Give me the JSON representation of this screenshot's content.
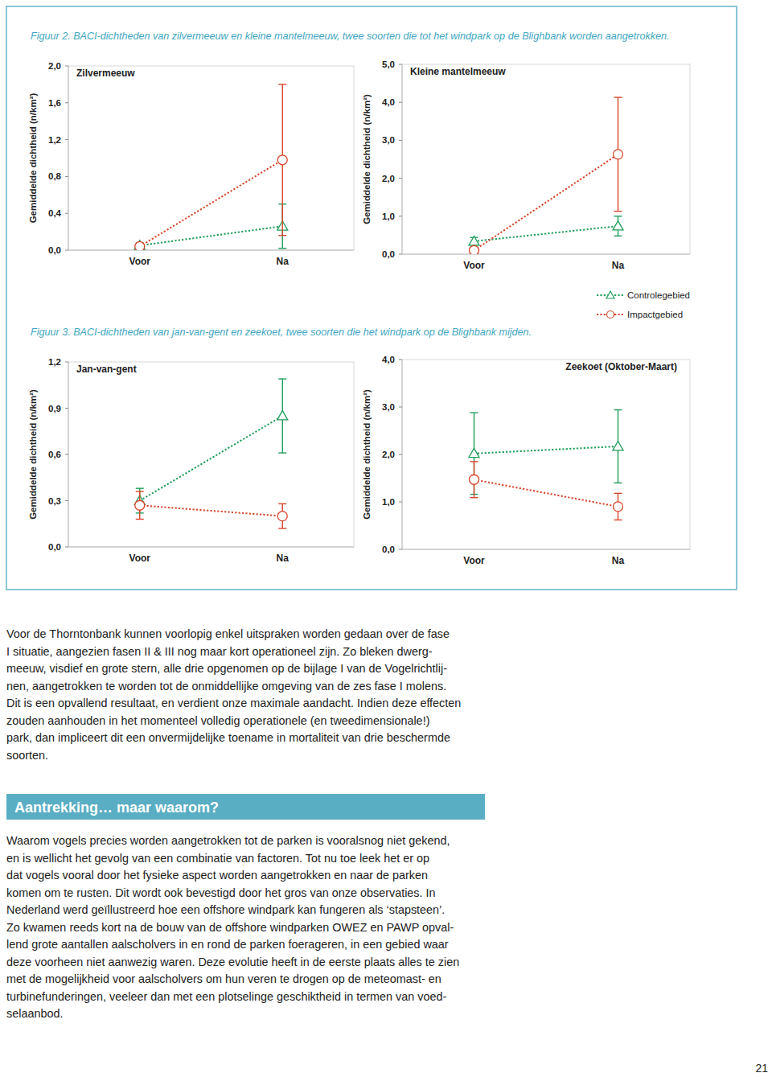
{
  "figures": [
    {
      "caption": "Figuur 2. BACI-dichtheden van zilvermeeuw en kleine mantelmeeuw, twee soorten die tot het windpark op de Blighbank worden aangetrokken."
    },
    {
      "caption": "Figuur 3. BACI-dichtheden van jan-van-gent en zeekoet, twee soorten die het windpark op de Blighbank mijden."
    }
  ],
  "chart_data": [
    {
      "type": "line",
      "title": "Zilvermeeuw",
      "y_label": "Gemiddelde dichtheid (n/km²)",
      "categories": [
        "Voor",
        "Na"
      ],
      "ylim": [
        0,
        2
      ],
      "yticks": [
        {
          "value": 0,
          "label": "0,0"
        },
        {
          "value": 0.4,
          "label": "0,4"
        },
        {
          "value": 0.8,
          "label": "0,8"
        },
        {
          "value": 1.2,
          "label": "1,2"
        },
        {
          "value": 1.6,
          "label": "1,6"
        },
        {
          "value": 2,
          "label": "2,0"
        }
      ],
      "grid": false,
      "series": [
        {
          "name": "Controlegebied",
          "color": "#1f9e5a",
          "marker": "triangle",
          "line_style": "dotted",
          "values": [
            0.05,
            0.26
          ],
          "errors": [
            0.03,
            0.24
          ]
        },
        {
          "name": "Impactgebied",
          "color": "#d9452b",
          "marker": "circle",
          "line_style": "dotted",
          "values": [
            0.04,
            0.98
          ],
          "errors": [
            0.01,
            0.82
          ]
        }
      ]
    },
    {
      "type": "line",
      "title": "Kleine mantelmeeuw",
      "y_label": "Gemiddelde dichtheid (n/km²)",
      "categories": [
        "Voor",
        "Na"
      ],
      "ylim": [
        0,
        5
      ],
      "yticks": [
        {
          "value": 0,
          "label": "0,0"
        },
        {
          "value": 1,
          "label": "1,0"
        },
        {
          "value": 2,
          "label": "2,0"
        },
        {
          "value": 3,
          "label": "3,0"
        },
        {
          "value": 4,
          "label": "4,0"
        },
        {
          "value": 5,
          "label": "5,0"
        }
      ],
      "grid": false,
      "series": [
        {
          "name": "Controlegebied",
          "color": "#1f9e5a",
          "marker": "triangle",
          "line_style": "dotted",
          "values": [
            0.34,
            0.74
          ],
          "errors": [
            0.1,
            0.26
          ]
        },
        {
          "name": "Impactgebied",
          "color": "#d9452b",
          "marker": "circle",
          "line_style": "dotted",
          "values": [
            0.1,
            2.63
          ],
          "errors": [
            0.03,
            1.5
          ]
        }
      ]
    },
    {
      "type": "line",
      "title": "Jan-van-gent",
      "y_label": "Gemiddelde dichtheid (n/km²)",
      "categories": [
        "Voor",
        "Na"
      ],
      "ylim": [
        0,
        1.2
      ],
      "yticks": [
        {
          "value": 0,
          "label": "0,0"
        },
        {
          "value": 0.3,
          "label": "0,3"
        },
        {
          "value": 0.6,
          "label": "0,6"
        },
        {
          "value": 0.9,
          "label": "0,9"
        },
        {
          "value": 1.2,
          "label": "1,2"
        }
      ],
      "grid": false,
      "series": [
        {
          "name": "Controlegebied",
          "color": "#1f9e5a",
          "marker": "triangle",
          "line_style": "dotted",
          "values": [
            0.3,
            0.85
          ],
          "errors": [
            0.08,
            0.24
          ]
        },
        {
          "name": "Impactgebied",
          "color": "#d9452b",
          "marker": "circle",
          "line_style": "dotted",
          "values": [
            0.27,
            0.2
          ],
          "errors": [
            0.09,
            0.08
          ]
        }
      ]
    },
    {
      "type": "line",
      "title": "Zeekoet (Oktober-Maart)",
      "y_label": "Gemiddelde dichtheid (n/km²)",
      "categories": [
        "Voor",
        "Na"
      ],
      "ylim": [
        0,
        4
      ],
      "yticks": [
        {
          "value": 0,
          "label": "0,0"
        },
        {
          "value": 1,
          "label": "1,0"
        },
        {
          "value": 2,
          "label": "2,0"
        },
        {
          "value": 3,
          "label": "3,0"
        },
        {
          "value": 4,
          "label": "4,0"
        }
      ],
      "grid": false,
      "series": [
        {
          "name": "Controlegebied",
          "color": "#1f9e5a",
          "marker": "triangle",
          "line_style": "dotted",
          "values": [
            2.02,
            2.17
          ],
          "errors": [
            0.86,
            0.77
          ]
        },
        {
          "name": "Impactgebied",
          "color": "#d9452b",
          "marker": "circle",
          "line_style": "dotted",
          "values": [
            1.47,
            0.9
          ],
          "errors": [
            0.38,
            0.28
          ]
        }
      ]
    }
  ],
  "paragraphs": [
    {
      "lines": [
        "Voor de Thorntonbank kunnen voorlopig enkel uitspraken worden gedaan over de fase",
        "I situatie, aangezien fasen II & III nog maar kort operationeel zijn. Zo bleken dwerg-",
        "meeuw, visdief en grote stern, alle drie opgenomen op de bijlage I van de Vogelrichtlij-",
        "nen, aangetrokken te worden tot de onmiddellijke omgeving van de zes fase I molens.",
        "Dit is een opvallend resultaat, en verdient onze maximale aandacht. Indien deze effecten",
        "zouden aanhouden in het momenteel volledig operationele (en tweedimensionale!)",
        "park, dan impliceert dit een onvermijdelijke toename in mortaliteit van drie beschermde",
        "soorten."
      ]
    },
    {
      "lines": [
        "Waarom vogels precies worden aangetrokken tot de parken is vooralsnog niet gekend,",
        "en is wellicht het gevolg van een combinatie van factoren. Tot nu toe leek het er op",
        "dat vogels vooral door het fysieke aspect worden aangetrokken en naar de parken",
        "komen om te rusten. Dit wordt ook bevestigd door het gros van onze observaties. In",
        "Nederland werd geïllustreerd hoe een offshore windpark kan fungeren als ‘stapsteen’.",
        "Zo kwamen reeds kort na de bouw van de offshore windparken OWEZ en PAWP opval-",
        "lend grote aantallen aalscholvers in en rond de parken foerageren, in een gebied waar",
        "deze voorheen niet aanwezig waren. Deze evolutie heeft in de eerste plaats alles te zien",
        "met de mogelijkheid voor aalscholvers om hun veren te drogen op de meteomast- en",
        "turbinefunderingen, veeleer dan met een plotselinge geschiktheid in termen van voed-",
        "selaanbod."
      ]
    }
  ],
  "heading": "Aantrekking… maar waarom?",
  "page_number": "21"
}
